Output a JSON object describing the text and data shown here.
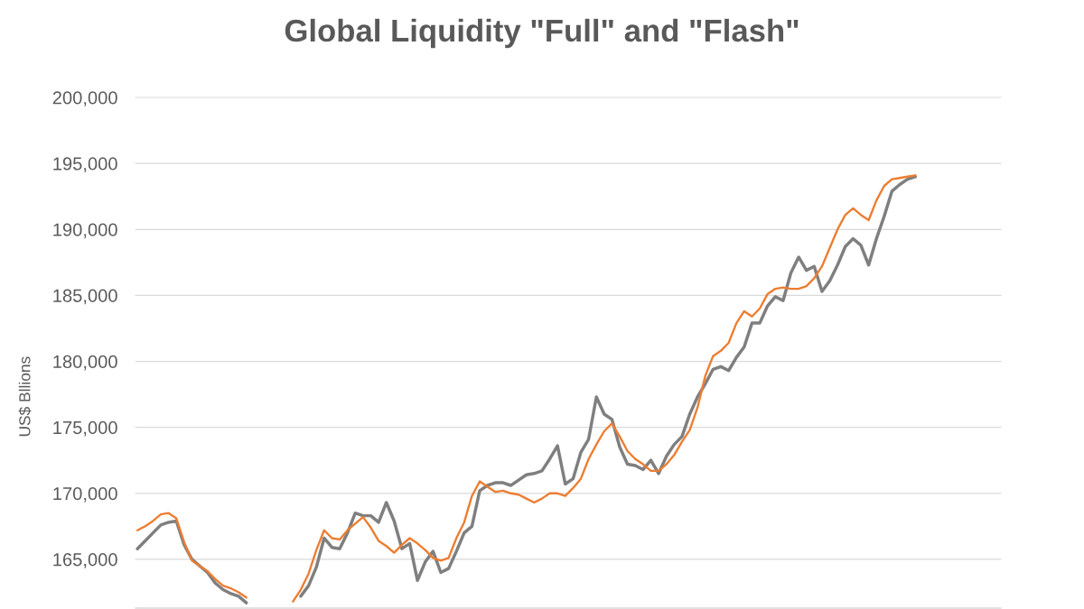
{
  "chart_data": {
    "type": "line",
    "title": "Global Liquidity \"Full\" and \"Flash\"",
    "ylabel": "US$ Bllions",
    "categories": [
      null,
      null,
      null,
      null,
      null,
      null,
      null,
      null,
      null,
      null,
      null,
      null,
      null,
      null,
      null,
      null,
      null,
      null,
      null,
      null,
      null,
      null,
      null,
      null,
      null,
      null,
      null,
      null,
      null,
      null,
      null,
      null,
      null,
      null,
      null,
      null,
      null,
      null,
      null,
      null,
      null,
      null,
      null,
      null,
      null,
      null,
      null,
      null,
      null,
      null,
      null,
      null,
      null,
      null,
      null,
      null,
      null,
      null,
      null,
      null,
      null,
      null,
      null,
      null,
      null,
      null,
      null,
      null,
      null,
      null,
      null,
      null,
      null,
      null,
      null,
      null,
      null,
      null,
      null,
      null,
      null,
      null,
      null,
      null,
      null,
      null,
      null,
      null,
      null,
      null,
      null,
      null,
      null,
      null,
      null,
      null,
      null,
      null,
      null,
      null,
      null,
      null,
      null,
      null,
      null,
      null,
      null,
      null,
      null,
      null,
      null,
      null
    ],
    "series": [
      {
        "color": "#7f7f7f",
        "values": [
          165800,
          166400,
          167000,
          167600,
          167800,
          167900,
          166100,
          165000,
          164500,
          164000,
          163200,
          162700,
          162400,
          162200,
          161700,
          null,
          null,
          null,
          null,
          null,
          null,
          null,
          null,
          null,
          null,
          null,
          null,
          null,
          null,
          null,
          null,
          null,
          null,
          null,
          null,
          null,
          null,
          null,
          null,
          null,
          null,
          null,
          null,
          null,
          null,
          null,
          null,
          null,
          null,
          null,
          null,
          null,
          null,
          null,
          null,
          null,
          null,
          null,
          null,
          null,
          null,
          null,
          null,
          null,
          null,
          null,
          null,
          null,
          null,
          null,
          null,
          null,
          null,
          null,
          null,
          null,
          null,
          null,
          null,
          null,
          null,
          null,
          null,
          null,
          null,
          null,
          null,
          null,
          null,
          null,
          null,
          null,
          null,
          null,
          null,
          null,
          null,
          null,
          null,
          null,
          null,
          null,
          null,
          null,
          null,
          null,
          null,
          null,
          null,
          null,
          null,
          null
        ]
      },
      {
        "color": "#7f7f7f",
        "values": [
          null,
          null,
          null,
          null,
          null,
          null,
          null,
          null,
          null,
          null,
          null,
          null,
          null,
          null,
          null,
          null,
          null,
          null,
          null,
          null,
          null,
          162200,
          163000,
          164400,
          166600,
          165900,
          165800,
          167000,
          168500,
          168300,
          168300,
          167800,
          169300,
          167900,
          165800,
          166200,
          163400,
          164800,
          165600,
          164000,
          164300,
          165600,
          167000,
          167500,
          170200,
          170600,
          170800,
          170800,
          170600,
          171000,
          171400,
          171500,
          171700,
          172600,
          173600,
          170700,
          171100,
          173100,
          174100,
          177300,
          176000,
          175600,
          173500,
          172200,
          172100,
          171800,
          172500,
          171500,
          172800,
          173700,
          174300,
          176000,
          177300,
          178300,
          179400,
          179600,
          179300,
          180300,
          181100,
          182900,
          182900,
          184200,
          184900,
          184600,
          186700,
          187900,
          186900,
          187200,
          185300,
          186100,
          187300,
          188700,
          189300,
          188800,
          187300,
          189300,
          191000,
          192900,
          193400,
          193800,
          194000,
          null,
          null,
          null,
          null,
          null,
          null,
          null,
          null,
          null,
          null,
          null
        ]
      },
      {
        "color": "#ed7d31",
        "values": [
          167200,
          167500,
          167900,
          168400,
          168500,
          168100,
          166300,
          164900,
          164500,
          164100,
          163500,
          163000,
          162800,
          162500,
          162100,
          null,
          null,
          null,
          null,
          null,
          null,
          null,
          null,
          null,
          null,
          null,
          null,
          null,
          null,
          null,
          null,
          null,
          null,
          null,
          null,
          null,
          null,
          null,
          null,
          null,
          null,
          null,
          null,
          null,
          null,
          null,
          null,
          null,
          null,
          null,
          null,
          null,
          null,
          null,
          null,
          null,
          null,
          null,
          null,
          null,
          null,
          null,
          null,
          null,
          null,
          null,
          null,
          null,
          null,
          null,
          null,
          null,
          null,
          null,
          null,
          null,
          null,
          null,
          null,
          null,
          null,
          null,
          null,
          null,
          null,
          null,
          null,
          null,
          null,
          null,
          null,
          null,
          null,
          null,
          null,
          null,
          null,
          null,
          null,
          null,
          null,
          null,
          null,
          null,
          null,
          null,
          null,
          null,
          null,
          null,
          null,
          null
        ]
      },
      {
        "color": "#ed7d31",
        "values": [
          null,
          null,
          null,
          null,
          null,
          null,
          null,
          null,
          null,
          null,
          null,
          null,
          null,
          null,
          null,
          null,
          null,
          null,
          null,
          null,
          161800,
          162700,
          163900,
          165700,
          167200,
          166600,
          166500,
          167200,
          167700,
          168200,
          167400,
          166400,
          166000,
          165500,
          166100,
          166600,
          166200,
          165700,
          165100,
          164900,
          165100,
          166600,
          167800,
          169800,
          170900,
          170500,
          170100,
          170200,
          170000,
          169900,
          169600,
          169300,
          169600,
          170000,
          170000,
          169800,
          170400,
          171100,
          172600,
          173700,
          174700,
          175300,
          174300,
          173200,
          172600,
          172200,
          171700,
          171700,
          172200,
          172900,
          173900,
          174800,
          176500,
          178900,
          180400,
          180800,
          181400,
          182900,
          183800,
          183400,
          184000,
          185100,
          185500,
          185600,
          185500,
          185500,
          185700,
          186300,
          187200,
          188600,
          190000,
          191100,
          191600,
          191100,
          190700,
          192200,
          193300,
          193800,
          193900,
          194000,
          194100,
          null,
          null,
          null,
          null,
          null,
          null,
          null,
          null,
          null,
          null,
          null
        ]
      }
    ],
    "ylim": [
      161300,
      200000
    ],
    "yticks": [
      {
        "value": 165000,
        "label": "165,000"
      },
      {
        "value": 170000,
        "label": "170,000"
      },
      {
        "value": 175000,
        "label": "175,000"
      },
      {
        "value": 180000,
        "label": "180,000"
      },
      {
        "value": 185000,
        "label": "185,000"
      },
      {
        "value": 190000,
        "label": "190,000"
      },
      {
        "value": 195000,
        "label": "195,000"
      },
      {
        "value": 200000,
        "label": "200,000"
      }
    ],
    "grid": "y",
    "tick_labels": "y"
  }
}
